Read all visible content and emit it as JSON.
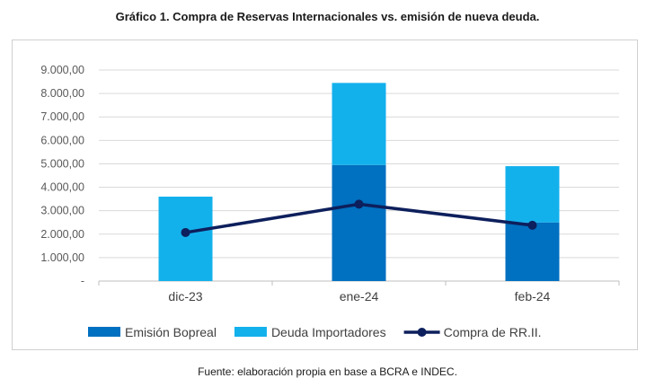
{
  "title": "Gráfico 1. Compra de Reservas Internacionales vs. emisión de nueva deuda.",
  "source": "Fuente: elaboración propia en base a BCRA e INDEC.",
  "chart_data": {
    "type": "bar",
    "stacked": true,
    "categories": [
      "dic-23",
      "ene-24",
      "feb-24"
    ],
    "series": [
      {
        "name": "Emisión Bopreal",
        "kind": "bar",
        "color": "#0070c0",
        "values": [
          0,
          4950,
          2500
        ]
      },
      {
        "name": "Deuda Importadores",
        "kind": "bar",
        "color": "#13b1ec",
        "values": [
          3600,
          3500,
          2400
        ]
      },
      {
        "name": "Compra de RR.II.",
        "kind": "line",
        "color": "#0d1f5c",
        "values": [
          2070,
          3280,
          2380
        ]
      }
    ],
    "ylim": [
      0,
      9000
    ],
    "yticks": [
      "-",
      "1.000,00",
      "2.000,00",
      "3.000,00",
      "4.000,00",
      "5.000,00",
      "6.000,00",
      "7.000,00",
      "8.000,00",
      "9.000,00"
    ],
    "grid": true,
    "legend": "bottom"
  }
}
